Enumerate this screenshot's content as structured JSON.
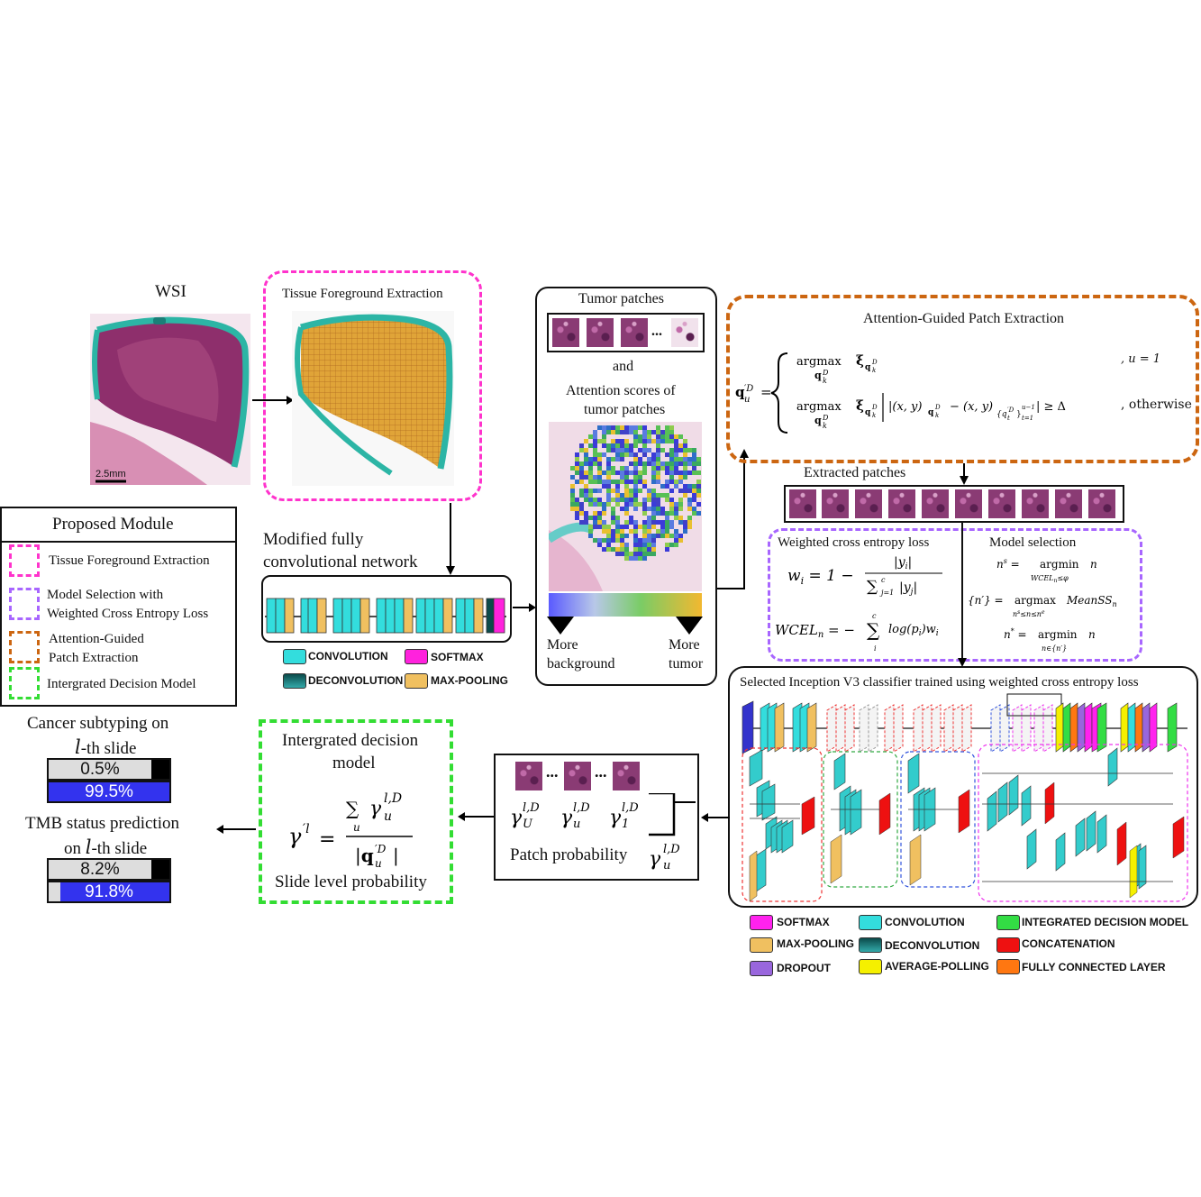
{
  "wsi": {
    "title": "WSI",
    "scale_bar": "2.5mm"
  },
  "tissue": {
    "title": "Tissue Foreground Extraction"
  },
  "legend": {
    "title": "Proposed Module",
    "items": [
      {
        "label": "Tissue Foreground Extraction",
        "color": "#ff33cc"
      },
      {
        "label": "Model Selection with Weighted Cross Entropy Loss",
        "line1": "Model Selection with",
        "line2": "Weighted Cross Entropy Loss",
        "color": "#a866ff"
      },
      {
        "label": "Attention-Guided Patch Extraction",
        "line1": "Attention-Guided",
        "line2": "Patch Extraction",
        "color": "#cc6611"
      },
      {
        "label": "Intergrated Decision Model",
        "color": "#33dd33"
      }
    ]
  },
  "fcn": {
    "title_line1": "Modified fully",
    "title_line2": "convolutional network",
    "legend": [
      {
        "label": "CONVOLUTION",
        "color": "#33dddd"
      },
      {
        "label": "SOFTMAX",
        "color": "#ff22dd"
      },
      {
        "label": "DECONVOLUTION",
        "color": "#0b4b4b"
      },
      {
        "label": "MAX-POOLING",
        "color": "#f0c060"
      }
    ]
  },
  "tumor": {
    "title": "Tumor patches",
    "ellipsis": "...",
    "and": "and",
    "attention_line1": "Attention scores of",
    "attention_line2": "tumor patches",
    "more_background_1": "More",
    "more_background_2": "background",
    "more_tumor_1": "More",
    "more_tumor_2": "tumor"
  },
  "attention_patch": {
    "title": "Attention-Guided Patch Extraction",
    "cond1": ", u = 1",
    "cond2": ", otherwise"
  },
  "extracted": {
    "title": "Extracted patches"
  },
  "wce": {
    "title": "Weighted cross entropy loss",
    "model_selection": "Model selection"
  },
  "inception": {
    "title": "Selected Inception V3 classifier trained using weighted cross entropy loss",
    "legend": [
      {
        "label": "SOFTMAX",
        "color": "#ff22ee"
      },
      {
        "label": "CONVOLUTION",
        "color": "#33dddd"
      },
      {
        "label": "INTEGRATED DECISION MODEL",
        "color": "#33dd44"
      },
      {
        "label": "MAX-POOLING",
        "color": "#f0c060"
      },
      {
        "label": "DECONVOLUTION",
        "color": "#0b4b4b"
      },
      {
        "label": "CONCATENATION",
        "color": "#ee1111"
      },
      {
        "label": "DROPOUT",
        "color": "#9966dd"
      },
      {
        "label": "AVERAGE-POLLING",
        "color": "#f5f000"
      },
      {
        "label": "FULLY CONNECTED LAYER",
        "color": "#ff7711"
      }
    ]
  },
  "patch_prob": {
    "title": "Patch probability",
    "ellipsis": "..."
  },
  "decision": {
    "title_line1": "Intergrated decision",
    "title_line2": "model",
    "caption": "Slide level probability"
  },
  "outputs": {
    "subtype_line1": "Cancer subtyping on",
    "subtype_line2": "-th slide",
    "subtype_values": [
      "0.5%",
      "99.5%"
    ],
    "subtype_fractions": [
      0.005,
      0.995
    ],
    "tmb_line1": "TMB status prediction",
    "tmb_line2": "on",
    "tmb_line2b": "-th slide",
    "tmb_values": [
      "8.2%",
      "91.8%"
    ],
    "tmb_fractions": [
      0.082,
      0.918
    ],
    "l_symbol": "l"
  },
  "colors": {
    "bar_light": "#dddddd",
    "bar_blue": "#3333ee",
    "bar_black": "#000000"
  }
}
